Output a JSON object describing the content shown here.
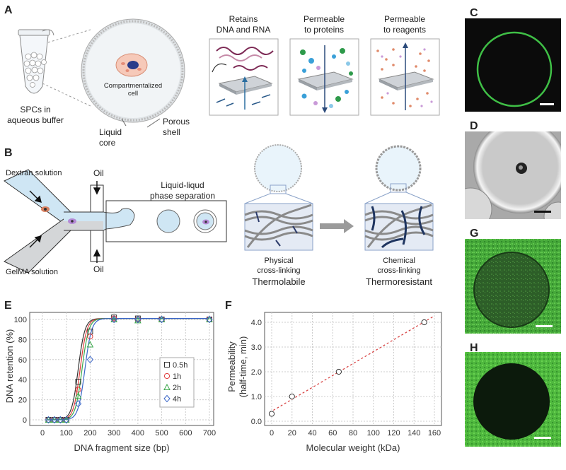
{
  "panels": {
    "A": {
      "label": "A",
      "tube_caption_1": "SPCs in",
      "tube_caption_2": "aqueous buffer",
      "cell_label_1": "Compartmentalized",
      "cell_label_2": "cell",
      "core_label_1": "Liquid",
      "core_label_2": "core",
      "shell_label_1": "Porous",
      "shell_label_2": "shell",
      "box1_1": "Retains",
      "box1_2": "DNA and RNA",
      "box2_1": "Permeable",
      "box2_2": "to proteins",
      "box3_1": "Permeable",
      "box3_2": "to reagents"
    },
    "B": {
      "label": "B",
      "dextran": "Dextran solution",
      "gelma": "GelMA solution",
      "oil_top": "Oil",
      "oil_bottom": "Oil",
      "phase_1": "Liquid-liqud",
      "phase_2": "phase separation",
      "physical_1": "Physical",
      "physical_2": "cross-linking",
      "physical_3": "Thermolabile",
      "chemical_1": "Chemical",
      "chemical_2": "cross-linking",
      "chemical_3": "Thermoresistant"
    },
    "C": {
      "label": "C"
    },
    "D": {
      "label": "D"
    },
    "G": {
      "label": "G"
    },
    "H": {
      "label": "H"
    },
    "E": {
      "label": "E"
    },
    "F": {
      "label": "F"
    }
  },
  "chart_data": [
    {
      "type": "scatter",
      "panel": "E",
      "xlabel": "DNA fragment size (bp)",
      "ylabel": "DNA retention (%)",
      "xlim": [
        0,
        700
      ],
      "ylim": [
        0,
        100
      ],
      "xticks": [
        "0",
        "100",
        "200",
        "300",
        "400",
        "500",
        "600",
        "700"
      ],
      "yticks": [
        "0",
        "20",
        "40",
        "60",
        "80",
        "100"
      ],
      "grid": true,
      "legend_position": "right",
      "series": [
        {
          "name": "0.5h",
          "marker": "square",
          "color": "#333333",
          "x": [
            25,
            50,
            75,
            100,
            150,
            200,
            300,
            400,
            500,
            700
          ],
          "y": [
            0,
            0,
            0,
            0,
            38,
            88,
            102,
            101,
            100,
            100
          ]
        },
        {
          "name": "1h",
          "marker": "circle",
          "color": "#e03a3a",
          "x": [
            25,
            50,
            75,
            100,
            150,
            200,
            300,
            400,
            500,
            700
          ],
          "y": [
            0,
            0,
            0,
            0,
            30,
            83,
            101,
            100,
            100,
            100
          ]
        },
        {
          "name": "2h",
          "marker": "triangle",
          "color": "#3aa84a",
          "x": [
            25,
            50,
            75,
            100,
            150,
            200,
            300,
            400,
            500,
            700
          ],
          "y": [
            0,
            0,
            0,
            0,
            24,
            75,
            100,
            99,
            100,
            100
          ]
        },
        {
          "name": "4h",
          "marker": "diamond",
          "color": "#3a66c8",
          "x": [
            25,
            50,
            75,
            100,
            150,
            200,
            300,
            400,
            500,
            700
          ],
          "y": [
            0,
            0,
            0,
            0,
            16,
            60,
            100,
            100,
            100,
            100
          ]
        }
      ]
    },
    {
      "type": "scatter",
      "panel": "F",
      "xlabel": "Molecular weight (kDa)",
      "ylabel_1": "Permeability",
      "ylabel_2": "(half-time, min)",
      "xlim": [
        0,
        160
      ],
      "ylim": [
        0,
        4.4
      ],
      "xticks": [
        "0",
        "20",
        "40",
        "60",
        "80",
        "100",
        "120",
        "140",
        "160"
      ],
      "yticks": [
        "0.0",
        "1.0",
        "2.0",
        "3.0",
        "4.0"
      ],
      "grid": true,
      "fit": "linear dashed",
      "series": [
        {
          "x": [
            0,
            20,
            66,
            150
          ],
          "y": [
            0.3,
            1.0,
            2.0,
            4.0
          ],
          "color": "#333333"
        }
      ]
    }
  ],
  "colors": {
    "green_stain": "#49b83a",
    "blue_core": "#cfe6f4",
    "navy": "#1f3560"
  }
}
